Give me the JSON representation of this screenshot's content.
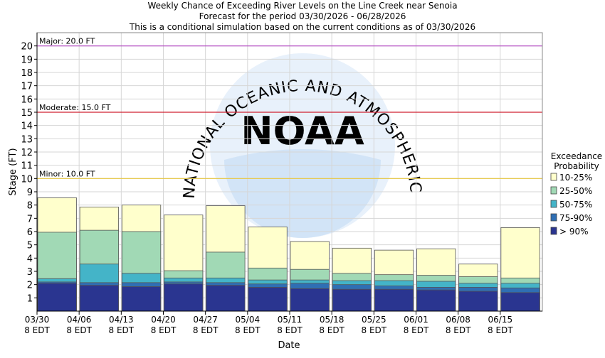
{
  "chart_data": {
    "type": "bar",
    "title_lines": [
      "Weekly Chance of Exceeding River Levels on the Line Creek near Senoia",
      "Forecast for the period 03/30/2026 - 06/28/2026",
      "This is a conditional simulation based on the current conditions as of 03/30/2026"
    ],
    "xlabel": "Date",
    "ylabel": "Stage (FT)",
    "ylim": [
      0,
      21
    ],
    "yticks": [
      1,
      2,
      3,
      4,
      5,
      6,
      7,
      8,
      9,
      10,
      11,
      12,
      13,
      14,
      15,
      16,
      17,
      18,
      19,
      20
    ],
    "grid": true,
    "categories": [
      [
        "03/30",
        "8 EDT"
      ],
      [
        "04/06",
        "8 EDT"
      ],
      [
        "04/13",
        "8 EDT"
      ],
      [
        "04/20",
        "8 EDT"
      ],
      [
        "04/27",
        "8 EDT"
      ],
      [
        "05/04",
        "8 EDT"
      ],
      [
        "05/11",
        "8 EDT"
      ],
      [
        "05/18",
        "8 EDT"
      ],
      [
        "05/25",
        "8 EDT"
      ],
      [
        "06/01",
        "8 EDT"
      ],
      [
        "06/08",
        "8 EDT"
      ],
      [
        "06/15",
        "8 EDT"
      ]
    ],
    "series": [
      {
        "name": "> 90%",
        "color": "#2a3590",
        "values": [
          2.1,
          1.95,
          1.85,
          2.05,
          1.95,
          1.8,
          1.7,
          1.65,
          1.65,
          1.6,
          1.5,
          1.4
        ]
      },
      {
        "name": "75-90%",
        "color": "#2f6fb4",
        "values": [
          2.2,
          2.15,
          2.15,
          2.2,
          2.15,
          2.05,
          2.1,
          2.0,
          1.9,
          1.8,
          1.8,
          1.75
        ]
      },
      {
        "name": "50-75%",
        "color": "#44b4c8",
        "values": [
          2.45,
          3.55,
          2.85,
          2.5,
          2.5,
          2.35,
          2.35,
          2.3,
          2.3,
          2.25,
          2.1,
          2.1
        ]
      },
      {
        "name": "25-50%",
        "color": "#a1d9b5",
        "values": [
          5.95,
          6.1,
          6.0,
          3.05,
          4.45,
          3.25,
          3.15,
          2.85,
          2.75,
          2.7,
          2.6,
          2.5
        ]
      },
      {
        "name": "10-25%",
        "color": "#ffffcc",
        "values": [
          8.55,
          7.85,
          8.0,
          7.25,
          7.95,
          6.35,
          5.25,
          4.75,
          4.6,
          4.7,
          3.55,
          6.3
        ]
      }
    ],
    "legend": {
      "title_lines": [
        "Exceedance",
        "Probability"
      ],
      "placement": "right",
      "order": [
        "10-25%",
        "25-50%",
        "50-75%",
        "75-90%",
        "> 90%"
      ]
    },
    "flood_levels": [
      {
        "label": "Major: 20.0 FT",
        "value": 20.0,
        "color": "#b040c0"
      },
      {
        "label": "Moderate: 15.0 FT",
        "value": 15.0,
        "color": "#d02030"
      },
      {
        "label": "Minor: 10.0 FT",
        "value": 10.0,
        "color": "#e8c840"
      }
    ],
    "watermark_text": [
      "NATIONAL OCEANIC AND ATMOSPHERIC ADMINISTRATION",
      "NOAA"
    ]
  }
}
